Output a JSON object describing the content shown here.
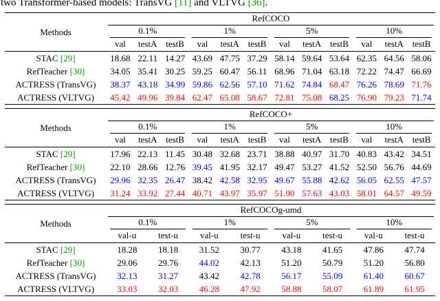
{
  "caption": {
    "segments": [
      {
        "text": "two Transformer-based models: TransVG ",
        "type": "text"
      },
      {
        "text": "[11]",
        "type": "cite"
      },
      {
        "text": " and VLTVG ",
        "type": "text"
      },
      {
        "text": "[36]",
        "type": "cite"
      },
      {
        "text": ".",
        "type": "text"
      }
    ]
  },
  "colors": {
    "best": "#ff0000",
    "second_best": "#0000ff",
    "citation": "#00a000",
    "text": "#000000"
  },
  "tables": [
    {
      "dataset": "RefCOCO",
      "methods_label": "Methods",
      "groups": [
        "0.1%",
        "1%",
        "5%",
        "10%"
      ],
      "sub_columns": [
        "val",
        "testA",
        "testB"
      ],
      "rows": [
        {
          "method": "STAC",
          "cite": "[29]",
          "values": [
            "18.68",
            "22.11",
            "14.27",
            "43.69",
            "47.75",
            "37.29",
            "58.14",
            "59.64",
            "53.64",
            "62.35",
            "64.56",
            "58.06"
          ],
          "colors": [
            "k",
            "k",
            "k",
            "k",
            "k",
            "k",
            "k",
            "k",
            "k",
            "k",
            "k",
            "k"
          ]
        },
        {
          "method": "RefTeacher",
          "cite": "[30]",
          "values": [
            "34.05",
            "35.41",
            "30.25",
            "59.25",
            "60.47",
            "56.11",
            "68.96",
            "71.04",
            "63.18",
            "72.22",
            "74.47",
            "66.69"
          ],
          "colors": [
            "k",
            "k",
            "k",
            "k",
            "k",
            "k",
            "k",
            "k",
            "k",
            "k",
            "k",
            "k"
          ]
        },
        {
          "method": "ACTRESS (TransVG)",
          "cite": "",
          "values": [
            "38.37",
            "43.18",
            "34.99",
            "59.86",
            "62.56",
            "57.10",
            "71.62",
            "74.84",
            "68.47",
            "76.26",
            "78.69",
            "71.76"
          ],
          "colors": [
            "b",
            "b",
            "b",
            "b",
            "b",
            "b",
            "b",
            "b",
            "r",
            "b",
            "b",
            "r"
          ]
        },
        {
          "method": "ACTRESS (VLTVG)",
          "cite": "",
          "values": [
            "45.42",
            "49.96",
            "39.84",
            "62.47",
            "65.08",
            "58.67",
            "72.81",
            "75.08",
            "68.25",
            "76.90",
            "79.23",
            "71.74"
          ],
          "colors": [
            "r",
            "r",
            "r",
            "r",
            "r",
            "r",
            "r",
            "r",
            "b",
            "r",
            "r",
            "b"
          ]
        }
      ]
    },
    {
      "dataset": "RefCOCO+",
      "methods_label": "Methods",
      "groups": [
        "0.1%",
        "1%",
        "5%",
        "10%"
      ],
      "sub_columns": [
        "val",
        "testA",
        "testB"
      ],
      "rows": [
        {
          "method": "STAC",
          "cite": "[29]",
          "values": [
            "17.96",
            "22.13",
            "11.45",
            "30.48",
            "32.68",
            "23.71",
            "38.88",
            "40.97",
            "31.70",
            "40.83",
            "43.42",
            "34.51"
          ],
          "colors": [
            "k",
            "k",
            "k",
            "k",
            "k",
            "k",
            "k",
            "k",
            "k",
            "k",
            "k",
            "k"
          ]
        },
        {
          "method": "RefTeacher",
          "cite": "[30]",
          "values": [
            "22.10",
            "28.66",
            "12.76",
            "39.45",
            "41.95",
            "32.17",
            "49.47",
            "53.27",
            "41.52",
            "52.50",
            "56.76",
            "44.69"
          ],
          "colors": [
            "k",
            "k",
            "k",
            "b",
            "k",
            "k",
            "k",
            "k",
            "k",
            "k",
            "k",
            "k"
          ]
        },
        {
          "method": "ACTRESS (TransVG)",
          "cite": "",
          "values": [
            "29.96",
            "32.35",
            "26.47",
            "38.42",
            "42.58",
            "32.95",
            "49.67",
            "55.88",
            "42.62",
            "56.05",
            "62.55",
            "47.57"
          ],
          "colors": [
            "b",
            "b",
            "b",
            "k",
            "b",
            "b",
            "b",
            "b",
            "b",
            "b",
            "b",
            "b"
          ]
        },
        {
          "method": "ACTRESS (VLTVG)",
          "cite": "",
          "values": [
            "31.24",
            "33.92",
            "27.44",
            "40.71",
            "43.97",
            "35.97",
            "51.90",
            "57.63",
            "43.03",
            "58.01",
            "64.57",
            "49.59"
          ],
          "colors": [
            "r",
            "r",
            "r",
            "r",
            "r",
            "r",
            "r",
            "r",
            "r",
            "r",
            "r",
            "r"
          ]
        }
      ]
    },
    {
      "dataset": "RefCOCOg-umd",
      "methods_label": "Methods",
      "groups": [
        "0.1%",
        "1%",
        "5%",
        "10%"
      ],
      "sub_columns": [
        "val-u",
        "test-u"
      ],
      "rows": [
        {
          "method": "STAC",
          "cite": "[29]",
          "values": [
            "18.28",
            "18.18",
            "31.52",
            "30.77",
            "43.18",
            "41.65",
            "47.86",
            "47.74"
          ],
          "colors": [
            "k",
            "k",
            "k",
            "k",
            "k",
            "k",
            "k",
            "k"
          ]
        },
        {
          "method": "RefTeacher",
          "cite": "[30]",
          "values": [
            "29.06",
            "29.76",
            "44.02",
            "42.13",
            "51.20",
            "50.79",
            "51.20",
            "56.80"
          ],
          "colors": [
            "k",
            "k",
            "b",
            "k",
            "k",
            "k",
            "k",
            "k"
          ]
        },
        {
          "method": "ACTRESS (TransVG)",
          "cite": "",
          "values": [
            "32.13",
            "31.27",
            "43.42",
            "42.78",
            "56.17",
            "55.09",
            "61.40",
            "60.67"
          ],
          "colors": [
            "b",
            "b",
            "k",
            "b",
            "b",
            "b",
            "b",
            "b"
          ]
        },
        {
          "method": "ACTRESS (VLTVG)",
          "cite": "",
          "values": [
            "33.03",
            "32.03",
            "46.28",
            "47.92",
            "58.88",
            "58.07",
            "61.89",
            "61.95"
          ],
          "colors": [
            "r",
            "r",
            "r",
            "r",
            "r",
            "r",
            "r",
            "r"
          ]
        }
      ]
    }
  ]
}
